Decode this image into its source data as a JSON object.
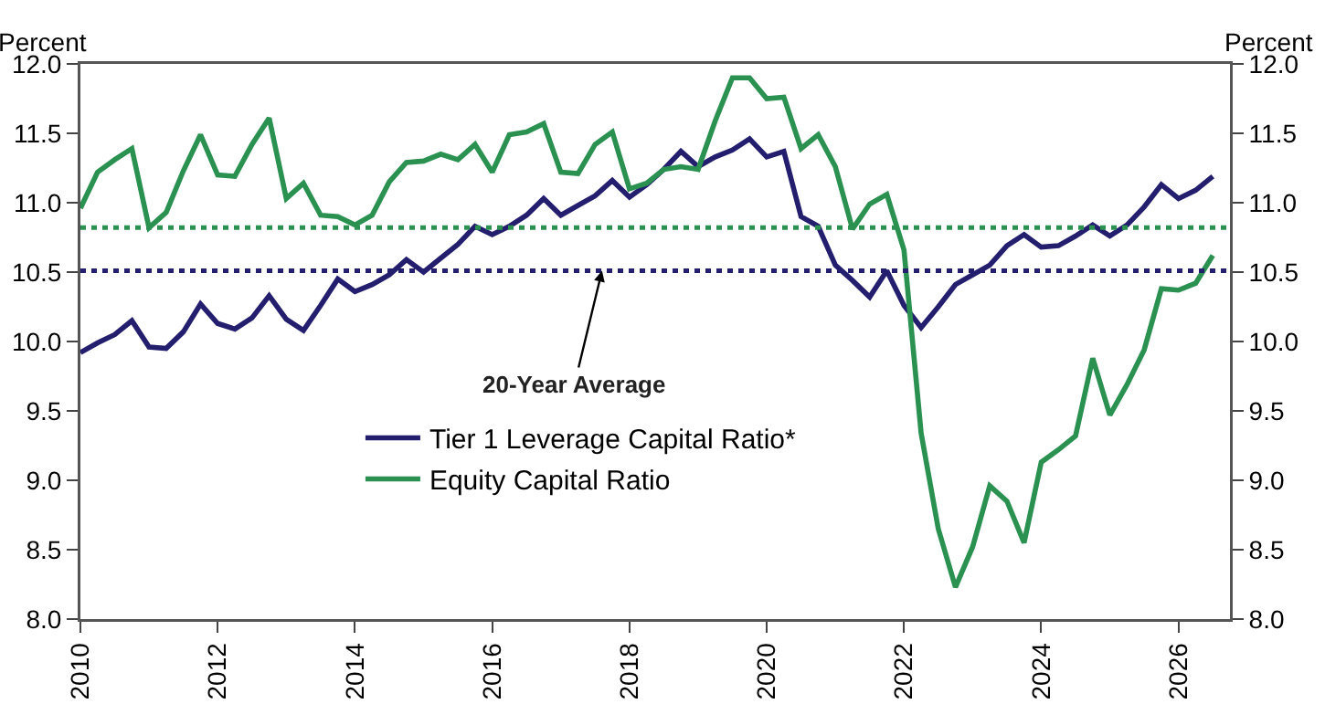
{
  "chart_data": {
    "type": "line",
    "ylabel": "Percent",
    "y2label": "Percent",
    "x": [
      2010,
      2010.25,
      2010.5,
      2010.75,
      2011,
      2011.25,
      2011.5,
      2011.75,
      2012,
      2012.25,
      2012.5,
      2012.75,
      2013,
      2013.25,
      2013.5,
      2013.75,
      2014,
      2014.25,
      2014.5,
      2014.75,
      2015,
      2015.25,
      2015.5,
      2015.75,
      2016,
      2016.25,
      2016.5,
      2016.75,
      2017,
      2017.25,
      2017.5,
      2017.75,
      2018,
      2018.25,
      2018.5,
      2018.75,
      2019,
      2019.25,
      2019.5,
      2019.75,
      2020,
      2020.25,
      2020.5,
      2020.75,
      2021,
      2021.25,
      2021.5,
      2021.75,
      2022,
      2022.25,
      2022.5,
      2022.75,
      2023,
      2023.25,
      2023.5,
      2023.75,
      2024,
      2024.25,
      2024.5,
      2024.75,
      2025,
      2025.25,
      2025.5,
      2025.75,
      2026,
      2026.25,
      2026.5
    ],
    "series": [
      {
        "name": "Tier 1 Leverage Capital Ratio*",
        "color": "#231f6e",
        "values": [
          9.92,
          9.99,
          10.05,
          10.15,
          9.96,
          9.95,
          10.07,
          10.27,
          10.13,
          10.09,
          10.17,
          10.33,
          10.16,
          10.08,
          10.26,
          10.45,
          10.36,
          10.41,
          10.48,
          10.59,
          10.5,
          10.6,
          10.7,
          10.83,
          10.77,
          10.83,
          10.91,
          11.03,
          10.91,
          10.98,
          11.05,
          11.16,
          11.04,
          11.13,
          11.24,
          11.37,
          11.26,
          11.33,
          11.38,
          11.46,
          11.33,
          11.37,
          10.9,
          10.83,
          10.55,
          10.44,
          10.32,
          10.51,
          10.26,
          10.1,
          10.25,
          10.41,
          10.48,
          10.55,
          10.69,
          10.77,
          10.68,
          10.69,
          10.76,
          10.84,
          10.76,
          10.84,
          10.97,
          11.13,
          11.03,
          11.09,
          11.19
        ]
      },
      {
        "name": "Equity Capital Ratio",
        "color": "#2a9150",
        "values": [
          10.96,
          11.22,
          11.31,
          11.39,
          10.82,
          10.93,
          11.23,
          11.49,
          11.2,
          11.19,
          11.42,
          11.61,
          11.03,
          11.14,
          10.91,
          10.9,
          10.84,
          10.91,
          11.15,
          11.29,
          11.3,
          11.35,
          11.31,
          11.42,
          11.22,
          11.49,
          11.51,
          11.57,
          11.22,
          11.21,
          11.42,
          11.51,
          11.1,
          11.14,
          11.24,
          11.26,
          11.24,
          11.59,
          11.9,
          11.9,
          11.75,
          11.76,
          11.39,
          11.49,
          11.26,
          10.81,
          10.99,
          11.06,
          10.66,
          9.34,
          8.65,
          8.23,
          8.52,
          8.96,
          8.85,
          8.55,
          9.13,
          9.22,
          9.32,
          9.88,
          9.47,
          9.69,
          9.94,
          10.38,
          10.37,
          10.42,
          10.62
        ]
      }
    ],
    "ref_lines": [
      {
        "axis": "y",
        "value": 10.82,
        "color": "#2a9150",
        "line_style": "dotted"
      },
      {
        "axis": "y",
        "value": 10.51,
        "color": "#231f6e",
        "line_style": "dotted"
      }
    ],
    "annotations": [
      {
        "text": "20-Year Average",
        "x": 2017.6,
        "y": 10.51
      }
    ],
    "xlim": [
      2010,
      2026.75
    ],
    "xticks": [
      2010,
      2012,
      2014,
      2016,
      2018,
      2020,
      2022,
      2024,
      2026
    ],
    "ylim": [
      8,
      12
    ],
    "yticks": [
      {
        "value": 8,
        "label": "8.0"
      },
      {
        "value": 8.5,
        "label": "8.5"
      },
      {
        "value": 9,
        "label": "9.0"
      },
      {
        "value": 9.5,
        "label": "9.5"
      },
      {
        "value": 10,
        "label": "10.0"
      },
      {
        "value": 10.5,
        "label": "10.5"
      },
      {
        "value": 11,
        "label": "11.0"
      },
      {
        "value": 11.5,
        "label": "11.5"
      },
      {
        "value": 12,
        "label": "12.0"
      }
    ],
    "y2lim": [
      8,
      12
    ],
    "y2ticks": [
      {
        "value": 8,
        "label": "8.0"
      },
      {
        "value": 8.5,
        "label": "8.5"
      },
      {
        "value": 9,
        "label": "9.0"
      },
      {
        "value": 9.5,
        "label": "9.5"
      },
      {
        "value": 10,
        "label": "10.0"
      },
      {
        "value": 10.5,
        "label": "10.5"
      },
      {
        "value": 11,
        "label": "11.0"
      },
      {
        "value": 11.5,
        "label": "11.5"
      },
      {
        "value": 12,
        "label": "12.0"
      }
    ],
    "grid": false,
    "legend": "bottom left",
    "line_style": "solid"
  }
}
